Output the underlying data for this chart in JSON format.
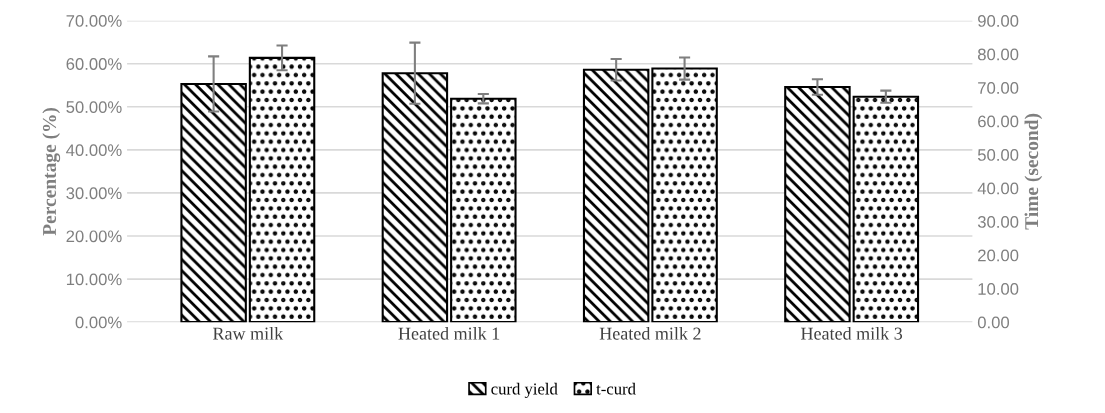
{
  "chart_data": {
    "type": "bar",
    "ylabel": "Percentage (%)",
    "y2label": "Time (second)",
    "categories": [
      "Raw milk",
      "Heated milk 1",
      "Heated milk 2",
      "Heated milk 3"
    ],
    "series": [
      {
        "name": "curd yield",
        "color": "#000000",
        "values": [
          55.3,
          57.8,
          58.6,
          54.6
        ],
        "errors": [
          6.4,
          7.1,
          2.5,
          1.8
        ]
      },
      {
        "name": "t-curd",
        "color": "#000000",
        "axis": "y2",
        "values": [
          78.9,
          66.7,
          75.7,
          67.3
        ],
        "errors": [
          3.7,
          1.4,
          3.3,
          1.8
        ]
      }
    ],
    "ylim": [
      0,
      70
    ],
    "yticks": [
      {
        "value": 0,
        "label": "0.00%"
      },
      {
        "value": 10,
        "label": "10.00%"
      },
      {
        "value": 20,
        "label": "20.00%"
      },
      {
        "value": 30,
        "label": "30.00%"
      },
      {
        "value": 40,
        "label": "40.00%"
      },
      {
        "value": 50,
        "label": "50.00%"
      },
      {
        "value": 60,
        "label": "60.00%"
      },
      {
        "value": 70,
        "label": "70.00%"
      }
    ],
    "y2lim": [
      0,
      90
    ],
    "y2ticks": [
      {
        "value": 0,
        "label": "0.00"
      },
      {
        "value": 10,
        "label": "10.00"
      },
      {
        "value": 20,
        "label": "20.00"
      },
      {
        "value": 30,
        "label": "30.00"
      },
      {
        "value": 40,
        "label": "40.00"
      },
      {
        "value": 50,
        "label": "50.00"
      },
      {
        "value": 60,
        "label": "60.00"
      },
      {
        "value": 70,
        "label": "70.00"
      },
      {
        "value": 80,
        "label": "80.00"
      },
      {
        "value": 90,
        "label": "90.00"
      }
    ],
    "grid": "y",
    "legend": "bottom"
  }
}
